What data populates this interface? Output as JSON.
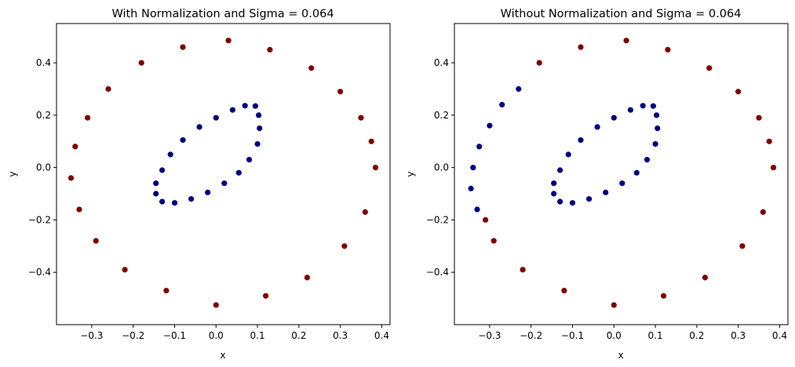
{
  "chart_data": [
    {
      "type": "scatter",
      "title": "With Normalization and Sigma = 0.064",
      "xlabel": "x",
      "ylabel": "y",
      "xlim": [
        -0.385,
        0.42
      ],
      "ylim": [
        -0.6,
        0.55
      ],
      "xticks": [
        -0.3,
        -0.2,
        -0.1,
        0.0,
        0.1,
        0.2,
        0.3,
        0.4
      ],
      "xtick_labels": [
        "−0.3",
        "−0.2",
        "−0.1",
        "0.0",
        "0.1",
        "0.2",
        "0.3",
        "0.4"
      ],
      "yticks": [
        -0.4,
        -0.2,
        0.0,
        0.2,
        0.4
      ],
      "ytick_labels": [
        "−0.4",
        "−0.2",
        "0.0",
        "0.2",
        "0.4"
      ],
      "grid": false,
      "series": [
        {
          "color": "#000080",
          "shape": "inner-ellipse",
          "center": [
            -0.018,
            0.05
          ],
          "points": [
            [
              0.095,
              0.235
            ],
            [
              0.07,
              0.236
            ],
            [
              0.04,
              0.22
            ],
            [
              0.0,
              0.19
            ],
            [
              -0.04,
              0.155
            ],
            [
              -0.08,
              0.105
            ],
            [
              -0.11,
              0.05
            ],
            [
              -0.13,
              -0.01
            ],
            [
              -0.145,
              -0.06
            ],
            [
              -0.145,
              -0.1
            ],
            [
              -0.13,
              -0.13
            ],
            [
              -0.1,
              -0.135
            ],
            [
              -0.06,
              -0.12
            ],
            [
              -0.02,
              -0.095
            ],
            [
              0.02,
              -0.06
            ],
            [
              0.055,
              -0.02
            ],
            [
              0.08,
              0.03
            ],
            [
              0.1,
              0.09
            ],
            [
              0.105,
              0.15
            ],
            [
              0.103,
              0.2
            ]
          ]
        },
        {
          "color": "#800000",
          "shape": "outer-ring",
          "center": [
            0.015,
            -0.02
          ],
          "points": [
            [
              0.385,
              0.0
            ],
            [
              0.375,
              0.1
            ],
            [
              0.35,
              0.19
            ],
            [
              0.3,
              0.29
            ],
            [
              0.23,
              0.38
            ],
            [
              0.13,
              0.45
            ],
            [
              0.03,
              0.485
            ],
            [
              -0.08,
              0.46
            ],
            [
              -0.18,
              0.4
            ],
            [
              -0.26,
              0.3
            ],
            [
              -0.31,
              0.19
            ],
            [
              -0.34,
              0.08
            ],
            [
              -0.35,
              -0.04
            ],
            [
              -0.33,
              -0.16
            ],
            [
              -0.29,
              -0.28
            ],
            [
              -0.22,
              -0.39
            ],
            [
              -0.12,
              -0.47
            ],
            [
              0.0,
              -0.525
            ],
            [
              0.12,
              -0.49
            ],
            [
              0.22,
              -0.42
            ],
            [
              0.31,
              -0.3
            ],
            [
              0.36,
              -0.17
            ]
          ]
        }
      ]
    },
    {
      "type": "scatter",
      "title": "Without Normalization and Sigma = 0.064",
      "xlabel": "x",
      "ylabel": "y",
      "xlim": [
        -0.385,
        0.42
      ],
      "ylim": [
        -0.6,
        0.55
      ],
      "xticks": [
        -0.3,
        -0.2,
        -0.1,
        0.0,
        0.1,
        0.2,
        0.3,
        0.4
      ],
      "xtick_labels": [
        "−0.3",
        "−0.2",
        "−0.1",
        "0.0",
        "0.1",
        "0.2",
        "0.3",
        "0.4"
      ],
      "yticks": [
        -0.4,
        -0.2,
        0.0,
        0.2,
        0.4
      ],
      "ytick_labels": [
        "−0.4",
        "−0.2",
        "0.0",
        "0.2",
        "0.4"
      ],
      "grid": false,
      "series": [
        {
          "color": "#000080",
          "shape": "inner-ellipse plus left arc of outer ring",
          "center": [
            -0.018,
            0.05
          ],
          "points": [
            [
              0.095,
              0.235
            ],
            [
              0.07,
              0.236
            ],
            [
              0.04,
              0.22
            ],
            [
              0.0,
              0.19
            ],
            [
              -0.04,
              0.155
            ],
            [
              -0.08,
              0.105
            ],
            [
              -0.11,
              0.05
            ],
            [
              -0.13,
              -0.01
            ],
            [
              -0.145,
              -0.06
            ],
            [
              -0.145,
              -0.1
            ],
            [
              -0.13,
              -0.13
            ],
            [
              -0.1,
              -0.135
            ],
            [
              -0.06,
              -0.12
            ],
            [
              -0.02,
              -0.095
            ],
            [
              0.02,
              -0.06
            ],
            [
              0.055,
              -0.02
            ],
            [
              0.08,
              0.03
            ],
            [
              0.1,
              0.09
            ],
            [
              0.105,
              0.15
            ],
            [
              0.103,
              0.2
            ],
            [
              -0.23,
              0.3
            ],
            [
              -0.27,
              0.24
            ],
            [
              -0.3,
              0.16
            ],
            [
              -0.325,
              0.08
            ],
            [
              -0.34,
              0.0
            ],
            [
              -0.345,
              -0.08
            ],
            [
              -0.33,
              -0.16
            ]
          ]
        },
        {
          "color": "#800000",
          "shape": "outer-ring (except left arc)",
          "center": [
            0.015,
            -0.02
          ],
          "points": [
            [
              0.385,
              0.0
            ],
            [
              0.375,
              0.1
            ],
            [
              0.35,
              0.19
            ],
            [
              0.3,
              0.29
            ],
            [
              0.23,
              0.38
            ],
            [
              0.13,
              0.45
            ],
            [
              0.03,
              0.485
            ],
            [
              -0.08,
              0.46
            ],
            [
              -0.18,
              0.4
            ],
            [
              -0.31,
              -0.2
            ],
            [
              -0.29,
              -0.28
            ],
            [
              -0.22,
              -0.39
            ],
            [
              -0.12,
              -0.47
            ],
            [
              0.0,
              -0.525
            ],
            [
              0.12,
              -0.49
            ],
            [
              0.22,
              -0.42
            ],
            [
              0.31,
              -0.3
            ],
            [
              0.36,
              -0.17
            ]
          ]
        }
      ]
    }
  ]
}
